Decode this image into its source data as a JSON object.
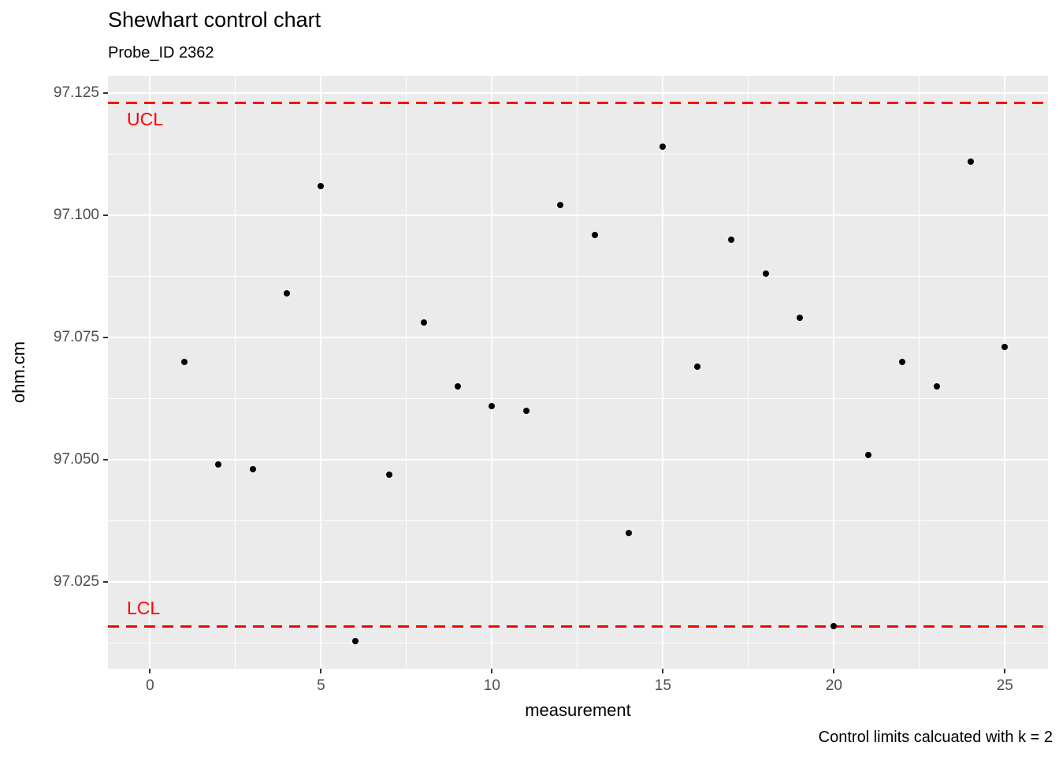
{
  "chart_data": {
    "type": "scatter",
    "title": "Shewhart control chart",
    "subtitle": "Probe_ID 2362",
    "xlabel": "measurement",
    "ylabel": "ohm.cm",
    "caption": "Control limits calcuated with k = 2",
    "x": [
      1,
      2,
      3,
      4,
      5,
      6,
      7,
      8,
      9,
      10,
      11,
      12,
      13,
      14,
      15,
      16,
      17,
      18,
      19,
      20,
      21,
      22,
      23,
      24,
      25
    ],
    "y": [
      97.07,
      97.049,
      97.048,
      97.084,
      97.106,
      97.013,
      97.047,
      97.078,
      97.065,
      97.061,
      97.06,
      97.102,
      97.096,
      97.035,
      97.114,
      97.069,
      97.095,
      97.088,
      97.079,
      97.016,
      97.051,
      97.07,
      97.065,
      97.111,
      97.073
    ],
    "control_limits": {
      "ucl": {
        "label": "UCL",
        "value": 97.123
      },
      "lcl": {
        "label": "LCL",
        "value": 97.016
      }
    },
    "x_ticks": [
      0,
      5,
      10,
      15,
      20,
      25
    ],
    "y_ticks": [
      97.025,
      97.05,
      97.075,
      97.1,
      97.125
    ],
    "x_minor_ticks": [
      2.5,
      7.5,
      12.5,
      17.5,
      22.5
    ],
    "y_minor_ticks": [
      97.0125,
      97.0375,
      97.0625,
      97.0875,
      97.1125
    ],
    "xlim": [
      -1.23,
      26.26
    ],
    "ylim": [
      97.0073,
      97.1285
    ],
    "colors": {
      "point": "#000000",
      "limit_line": "#FF0000",
      "panel_background": "#EBEBEB",
      "gridline": "#FFFFFF",
      "tick_text": "#4D4D4D"
    },
    "legend": "none",
    "grid": "on"
  }
}
